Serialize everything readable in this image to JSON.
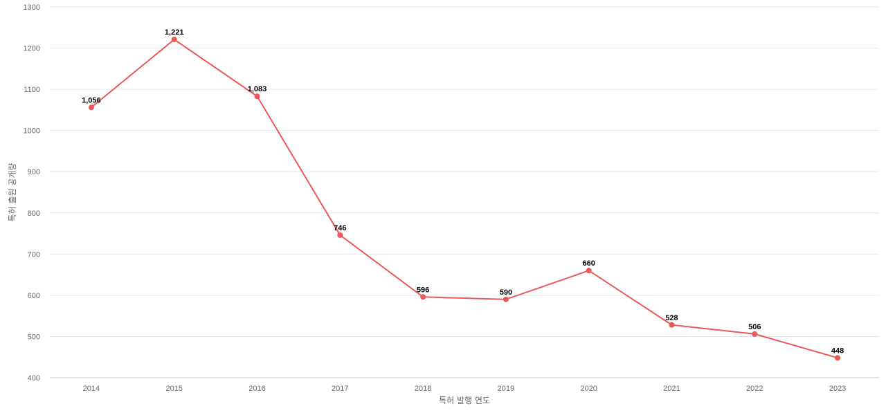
{
  "chart_data": {
    "type": "line",
    "xlabel": "특허 발행 연도",
    "ylabel": "특허 출원 공개량",
    "categories": [
      "2014",
      "2015",
      "2016",
      "2017",
      "2018",
      "2019",
      "2020",
      "2021",
      "2022",
      "2023"
    ],
    "series": [
      {
        "values": [
          1056,
          1221,
          1083,
          746,
          596,
          590,
          660,
          528,
          506,
          448
        ],
        "data_labels": [
          "1,056",
          "1,221",
          "1,083",
          "746",
          "596",
          "590",
          "660",
          "528",
          "506",
          "448"
        ],
        "color": "#e85a5a"
      }
    ],
    "ylim": [
      400,
      1300
    ],
    "yticks": [
      "400",
      "500",
      "600",
      "700",
      "800",
      "900",
      "1000",
      "1100",
      "1200",
      "1300"
    ],
    "grid": true,
    "legend": "none"
  }
}
